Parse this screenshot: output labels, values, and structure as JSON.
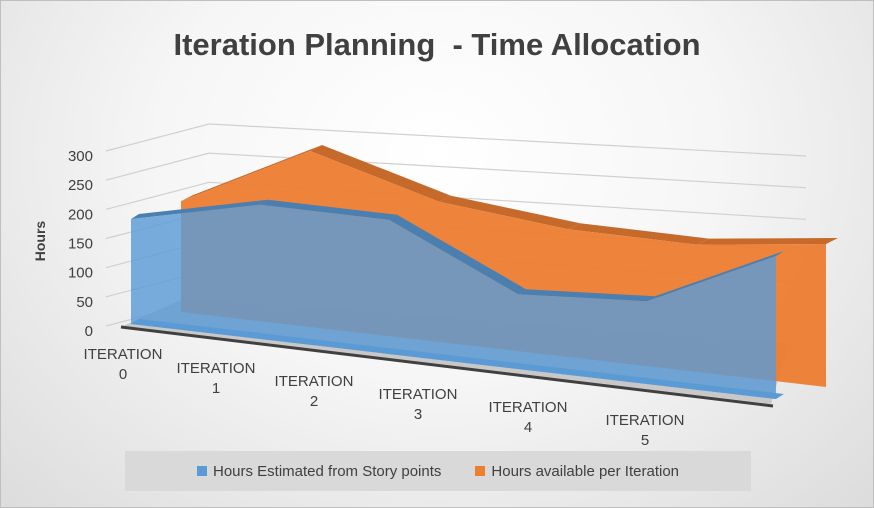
{
  "chart_data": {
    "type": "area",
    "title": "Iteration Planning  - Time Allocation",
    "ylabel": "Hours",
    "xlabel": "",
    "ylim": [
      0,
      300
    ],
    "yticks": [
      0,
      50,
      100,
      150,
      200,
      250,
      300
    ],
    "grid": true,
    "legend_position": "bottom",
    "categories": [
      [
        "ITERATION",
        "0"
      ],
      [
        "ITERATION",
        "1"
      ],
      [
        "ITERATION",
        "2"
      ],
      [
        "ITERATION",
        "3"
      ],
      [
        "ITERATION",
        "4"
      ],
      [
        "ITERATION",
        "5"
      ]
    ],
    "series": [
      {
        "name": "Hours Estimated from Story points",
        "values": [
          180,
          225,
          220,
          120,
          130,
          220
        ],
        "color": "#5b9bd5"
      },
      {
        "name": "Hours available per Iteration",
        "values": [
          190,
          295,
          230,
          205,
          200,
          220
        ],
        "color": "#ed7d31"
      }
    ]
  }
}
